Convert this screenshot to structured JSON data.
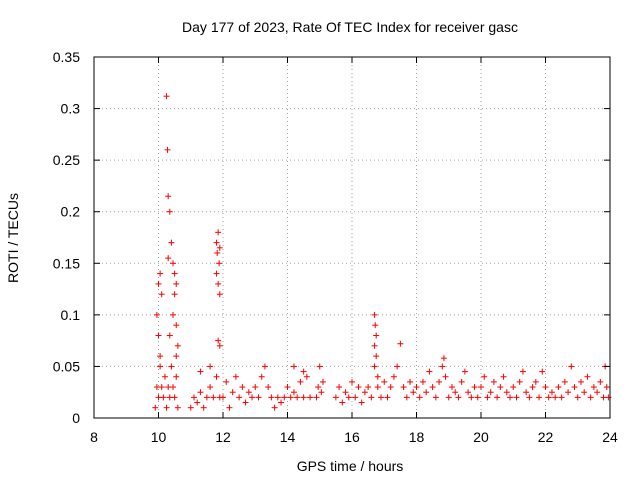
{
  "chart_data": {
    "type": "scatter",
    "title": "Day 177 of 2023, Rate Of TEC Index for receiver gasc",
    "xlabel": "GPS time / hours",
    "ylabel": "ROTI / TECUs",
    "xlim": [
      8,
      24
    ],
    "ylim": [
      0,
      0.35
    ],
    "xticks": [
      8,
      10,
      12,
      14,
      16,
      18,
      20,
      22,
      24
    ],
    "yticks": [
      0,
      0.05,
      0.1,
      0.15,
      0.2,
      0.25,
      0.3,
      0.35
    ],
    "xtick_labels": [
      "8",
      "10",
      "12",
      "14",
      "16",
      "18",
      "20",
      "22",
      "24"
    ],
    "ytick_labels": [
      "0",
      "0.05",
      "0.1",
      "0.15",
      "0.2",
      "0.25",
      "0.3",
      "0.35"
    ],
    "grid": true,
    "marker": "+",
    "marker_color": "#ff0000",
    "series": [
      {
        "name": "ROTI",
        "points": [
          [
            9.9,
            0.01
          ],
          [
            9.95,
            0.03
          ],
          [
            10.0,
            0.02
          ],
          [
            10.05,
            0.05
          ],
          [
            10.1,
            0.03
          ],
          [
            10.15,
            0.02
          ],
          [
            10.2,
            0.04
          ],
          [
            10.25,
            0.01
          ],
          [
            10.3,
            0.03
          ],
          [
            10.35,
            0.02
          ],
          [
            10.4,
            0.05
          ],
          [
            10.45,
            0.03
          ],
          [
            10.5,
            0.02
          ],
          [
            10.55,
            0.04
          ],
          [
            10.6,
            0.01
          ],
          [
            9.95,
            0.1
          ],
          [
            10.0,
            0.13
          ],
          [
            10.05,
            0.14
          ],
          [
            10.1,
            0.12
          ],
          [
            10.0,
            0.08
          ],
          [
            10.05,
            0.06
          ],
          [
            10.25,
            0.312
          ],
          [
            10.28,
            0.26
          ],
          [
            10.3,
            0.215
          ],
          [
            10.35,
            0.2
          ],
          [
            10.4,
            0.17
          ],
          [
            10.3,
            0.155
          ],
          [
            10.45,
            0.15
          ],
          [
            10.5,
            0.14
          ],
          [
            10.55,
            0.13
          ],
          [
            10.5,
            0.12
          ],
          [
            10.45,
            0.1
          ],
          [
            10.55,
            0.09
          ],
          [
            10.6,
            0.07
          ],
          [
            10.55,
            0.06
          ],
          [
            10.35,
            0.08
          ],
          [
            11.0,
            0.01
          ],
          [
            11.1,
            0.02
          ],
          [
            11.2,
            0.015
          ],
          [
            11.3,
            0.025
          ],
          [
            11.4,
            0.01
          ],
          [
            11.5,
            0.02
          ],
          [
            11.6,
            0.03
          ],
          [
            11.7,
            0.02
          ],
          [
            11.8,
            0.04
          ],
          [
            11.9,
            0.02
          ],
          [
            11.3,
            0.045
          ],
          [
            11.6,
            0.05
          ],
          [
            11.8,
            0.17
          ],
          [
            11.85,
            0.18
          ],
          [
            11.9,
            0.165
          ],
          [
            11.82,
            0.16
          ],
          [
            11.88,
            0.15
          ],
          [
            11.85,
            0.13
          ],
          [
            11.9,
            0.12
          ],
          [
            11.8,
            0.14
          ],
          [
            11.85,
            0.075
          ],
          [
            11.9,
            0.07
          ],
          [
            12.0,
            0.02
          ],
          [
            12.1,
            0.035
          ],
          [
            12.2,
            0.01
          ],
          [
            12.3,
            0.025
          ],
          [
            12.4,
            0.04
          ],
          [
            12.5,
            0.02
          ],
          [
            12.6,
            0.03
          ],
          [
            12.7,
            0.015
          ],
          [
            12.8,
            0.025
          ],
          [
            12.9,
            0.02
          ],
          [
            13.0,
            0.03
          ],
          [
            13.1,
            0.02
          ],
          [
            13.2,
            0.04
          ],
          [
            13.3,
            0.05
          ],
          [
            13.4,
            0.03
          ],
          [
            13.5,
            0.02
          ],
          [
            13.6,
            0.01
          ],
          [
            13.7,
            0.02
          ],
          [
            13.8,
            0.015
          ],
          [
            13.9,
            0.02
          ],
          [
            14.0,
            0.03
          ],
          [
            14.1,
            0.02
          ],
          [
            14.2,
            0.025
          ],
          [
            14.3,
            0.02
          ],
          [
            14.4,
            0.035
          ],
          [
            14.5,
            0.02
          ],
          [
            14.6,
            0.04
          ],
          [
            14.7,
            0.02
          ],
          [
            14.2,
            0.05
          ],
          [
            14.5,
            0.045
          ],
          [
            14.9,
            0.02
          ],
          [
            14.95,
            0.03
          ],
          [
            15.0,
            0.05
          ],
          [
            15.05,
            0.025
          ],
          [
            15.1,
            0.035
          ],
          [
            15.5,
            0.02
          ],
          [
            15.6,
            0.03
          ],
          [
            15.7,
            0.015
          ],
          [
            15.8,
            0.025
          ],
          [
            15.9,
            0.02
          ],
          [
            16.0,
            0.035
          ],
          [
            16.1,
            0.02
          ],
          [
            16.2,
            0.03
          ],
          [
            16.3,
            0.015
          ],
          [
            16.4,
            0.025
          ],
          [
            16.5,
            0.03
          ],
          [
            16.6,
            0.02
          ],
          [
            16.7,
            0.1
          ],
          [
            16.72,
            0.09
          ],
          [
            16.75,
            0.08
          ],
          [
            16.7,
            0.07
          ],
          [
            16.75,
            0.06
          ],
          [
            16.7,
            0.05
          ],
          [
            16.8,
            0.04
          ],
          [
            16.8,
            0.03
          ],
          [
            16.9,
            0.02
          ],
          [
            17.0,
            0.035
          ],
          [
            17.1,
            0.02
          ],
          [
            17.2,
            0.03
          ],
          [
            17.3,
            0.04
          ],
          [
            17.4,
            0.05
          ],
          [
            17.5,
            0.072
          ],
          [
            17.6,
            0.03
          ],
          [
            17.7,
            0.02
          ],
          [
            17.8,
            0.035
          ],
          [
            17.9,
            0.025
          ],
          [
            18.0,
            0.03
          ],
          [
            18.1,
            0.02
          ],
          [
            18.2,
            0.035
          ],
          [
            18.3,
            0.025
          ],
          [
            18.4,
            0.045
          ],
          [
            18.5,
            0.03
          ],
          [
            18.6,
            0.02
          ],
          [
            18.7,
            0.035
          ],
          [
            18.8,
            0.05
          ],
          [
            18.85,
            0.058
          ],
          [
            18.9,
            0.04
          ],
          [
            19.0,
            0.02
          ],
          [
            19.1,
            0.03
          ],
          [
            19.2,
            0.025
          ],
          [
            19.3,
            0.02
          ],
          [
            19.4,
            0.035
          ],
          [
            19.5,
            0.045
          ],
          [
            19.6,
            0.025
          ],
          [
            19.7,
            0.02
          ],
          [
            19.8,
            0.03
          ],
          [
            19.9,
            0.02
          ],
          [
            20.0,
            0.03
          ],
          [
            20.1,
            0.04
          ],
          [
            20.2,
            0.02
          ],
          [
            20.3,
            0.025
          ],
          [
            20.4,
            0.035
          ],
          [
            20.5,
            0.02
          ],
          [
            20.6,
            0.03
          ],
          [
            20.7,
            0.04
          ],
          [
            20.8,
            0.025
          ],
          [
            20.9,
            0.02
          ],
          [
            21.0,
            0.03
          ],
          [
            21.1,
            0.02
          ],
          [
            21.2,
            0.035
          ],
          [
            21.3,
            0.045
          ],
          [
            21.4,
            0.025
          ],
          [
            21.5,
            0.02
          ],
          [
            21.6,
            0.03
          ],
          [
            21.7,
            0.035
          ],
          [
            21.8,
            0.02
          ],
          [
            21.9,
            0.045
          ],
          [
            22.0,
            0.03
          ],
          [
            22.1,
            0.02
          ],
          [
            22.2,
            0.025
          ],
          [
            22.3,
            0.02
          ],
          [
            22.4,
            0.03
          ],
          [
            22.5,
            0.02
          ],
          [
            22.6,
            0.035
          ],
          [
            22.7,
            0.025
          ],
          [
            22.8,
            0.05
          ],
          [
            22.9,
            0.03
          ],
          [
            23.0,
            0.02
          ],
          [
            23.1,
            0.035
          ],
          [
            23.2,
            0.025
          ],
          [
            23.3,
            0.04
          ],
          [
            23.4,
            0.02
          ],
          [
            23.5,
            0.03
          ],
          [
            23.6,
            0.025
          ],
          [
            23.7,
            0.035
          ],
          [
            23.8,
            0.02
          ],
          [
            23.85,
            0.05
          ],
          [
            23.9,
            0.03
          ],
          [
            23.95,
            0.02
          ]
        ]
      }
    ]
  }
}
